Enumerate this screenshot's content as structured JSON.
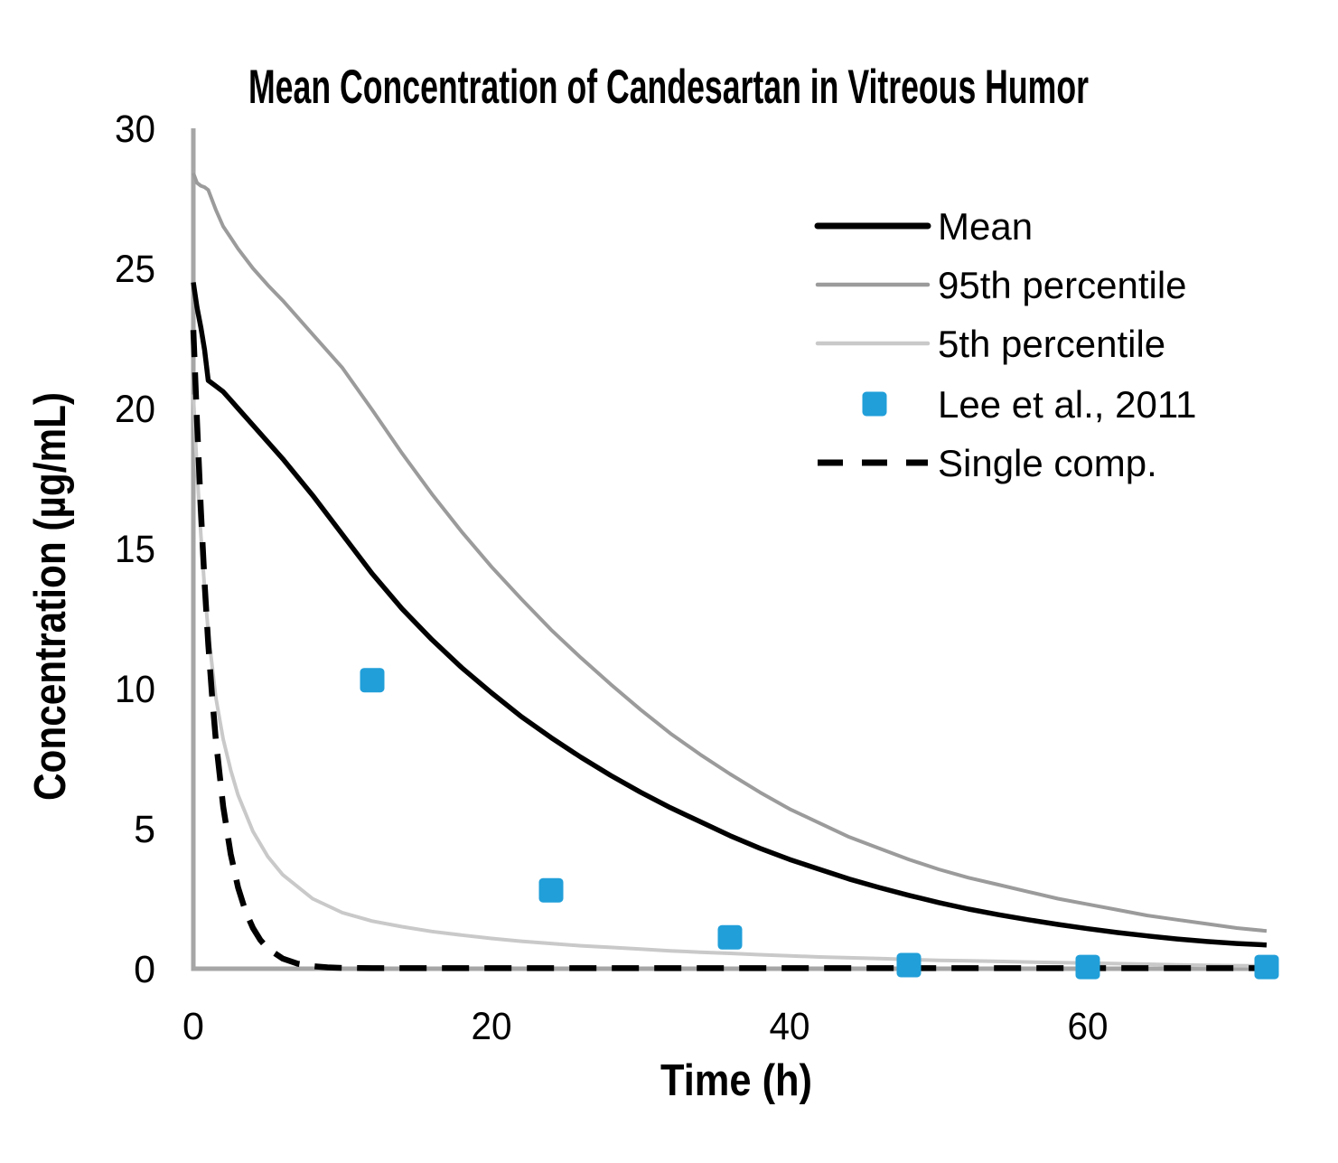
{
  "page": {
    "background": "#FFFFFF"
  },
  "chart_data": {
    "type": "line",
    "title": "Mean Concentration of Candesartan in Vitreous Humor",
    "xlabel": "Time (h)",
    "ylabel": "Concentration (µg/mL)",
    "xlim": [
      0,
      72
    ],
    "ylim": [
      0,
      30
    ],
    "x_ticks": [
      0,
      20,
      40,
      60
    ],
    "y_ticks": [
      0,
      5,
      10,
      15,
      20,
      25,
      30
    ],
    "grid": false,
    "legend_position": "inside-upper-right",
    "axis_color": "#A6A6A6",
    "text_color": "#000000",
    "series": [
      {
        "name": "Mean",
        "type": "line",
        "color": "#000000",
        "width": 5.5,
        "dash": null,
        "x": [
          0,
          0.25,
          0.5,
          0.75,
          1,
          1.5,
          2,
          2.5,
          3,
          4,
          5,
          6,
          8,
          10,
          12,
          14,
          16,
          18,
          20,
          22,
          24,
          26,
          28,
          30,
          32,
          34,
          36,
          38,
          40,
          42,
          44,
          46,
          48,
          50,
          52,
          54,
          56,
          58,
          60,
          62,
          64,
          66,
          68,
          70,
          72
        ],
        "y": [
          24.5,
          23.6,
          22.9,
          22.1,
          21.0,
          20.8,
          20.6,
          20.3,
          20.0,
          19.4,
          18.8,
          18.2,
          16.9,
          15.5,
          14.1,
          12.85,
          11.75,
          10.75,
          9.85,
          9.0,
          8.25,
          7.55,
          6.9,
          6.3,
          5.75,
          5.25,
          4.75,
          4.3,
          3.9,
          3.55,
          3.2,
          2.9,
          2.62,
          2.36,
          2.13,
          1.93,
          1.75,
          1.58,
          1.43,
          1.29,
          1.17,
          1.06,
          0.97,
          0.9,
          0.85
        ]
      },
      {
        "name": "95th percentile",
        "type": "line",
        "color": "#9B9B9B",
        "width": 4,
        "dash": null,
        "x": [
          0,
          0.25,
          0.5,
          0.75,
          1,
          1.5,
          2,
          2.5,
          3,
          4,
          5,
          6,
          8,
          10,
          12,
          14,
          16,
          18,
          20,
          22,
          24,
          26,
          28,
          30,
          32,
          34,
          36,
          38,
          40,
          42,
          44,
          46,
          48,
          50,
          52,
          54,
          56,
          58,
          60,
          62,
          64,
          66,
          68,
          70,
          72
        ],
        "y": [
          28.4,
          28.05,
          27.95,
          27.9,
          27.8,
          27.1,
          26.5,
          26.1,
          25.7,
          25.0,
          24.4,
          23.85,
          22.65,
          21.45,
          19.95,
          18.4,
          16.95,
          15.6,
          14.35,
          13.2,
          12.1,
          11.1,
          10.15,
          9.25,
          8.4,
          7.65,
          6.95,
          6.3,
          5.7,
          5.2,
          4.7,
          4.3,
          3.9,
          3.55,
          3.25,
          3.0,
          2.75,
          2.5,
          2.3,
          2.1,
          1.9,
          1.75,
          1.6,
          1.45,
          1.35
        ]
      },
      {
        "name": "5th percentile",
        "type": "line",
        "color": "#C9C9C9",
        "width": 4,
        "dash": null,
        "x": [
          0,
          0.25,
          0.5,
          0.75,
          1,
          1.5,
          2,
          2.5,
          3,
          4,
          5,
          6,
          8,
          10,
          12,
          14,
          16,
          18,
          20,
          22,
          24,
          26,
          28,
          30,
          32,
          34,
          36,
          38,
          40,
          42,
          44,
          46,
          48,
          50,
          52,
          54,
          56,
          58,
          60,
          62,
          64,
          66,
          68,
          70,
          72
        ],
        "y": [
          20.5,
          17.8,
          15.5,
          13.6,
          12.0,
          9.7,
          8.2,
          7.1,
          6.2,
          4.9,
          4.0,
          3.35,
          2.5,
          2.0,
          1.7,
          1.5,
          1.33,
          1.2,
          1.08,
          0.98,
          0.9,
          0.82,
          0.76,
          0.7,
          0.64,
          0.59,
          0.55,
          0.5,
          0.46,
          0.42,
          0.39,
          0.36,
          0.33,
          0.3,
          0.28,
          0.26,
          0.24,
          0.22,
          0.2,
          0.18,
          0.16,
          0.14,
          0.12,
          0.11,
          0.1
        ]
      },
      {
        "name": "Lee et al., 2011",
        "type": "scatter",
        "marker": "square",
        "color": "#219FD9",
        "size": 27,
        "x": [
          12,
          24,
          36,
          48,
          60,
          72
        ],
        "y": [
          10.3,
          2.8,
          1.12,
          0.13,
          0.06,
          0.06
        ]
      },
      {
        "name": "Single comp.",
        "type": "line",
        "color": "#000000",
        "width": 6.5,
        "dash": [
          30,
          17
        ],
        "x": [
          0,
          0.25,
          0.5,
          0.75,
          1,
          1.25,
          1.5,
          2,
          2.5,
          3,
          3.5,
          4,
          4.5,
          5,
          6,
          7,
          8,
          9,
          10,
          12,
          16,
          20,
          24,
          28,
          32,
          36,
          40,
          44,
          48,
          52,
          56,
          60,
          64,
          68,
          71.5
        ],
        "y": [
          22.8,
          19.5,
          16.4,
          13.8,
          11.6,
          9.8,
          8.2,
          5.8,
          4.1,
          2.9,
          2.05,
          1.45,
          1.02,
          0.72,
          0.36,
          0.18,
          0.09,
          0.05,
          0.03,
          0.02,
          0.02,
          0.02,
          0.02,
          0.02,
          0.02,
          0.02,
          0.02,
          0.02,
          0.02,
          0.02,
          0.02,
          0.02,
          0.02,
          0.02,
          0.02
        ]
      }
    ]
  }
}
